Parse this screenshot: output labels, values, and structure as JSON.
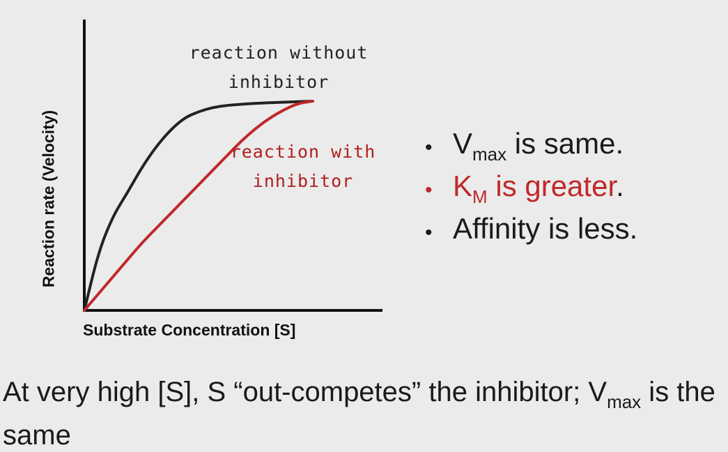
{
  "chart_data": {
    "type": "line",
    "xlabel": "Substrate Concentration [S]",
    "ylabel": "Reaction rate (Velocity)",
    "series": [
      {
        "name": "reaction without inhibitor",
        "color": "#222222",
        "x": [
          0,
          0.05,
          0.1,
          0.15,
          0.2,
          0.25,
          0.3,
          0.35,
          0.4,
          0.45,
          0.5,
          0.55,
          0.6,
          0.7,
          0.8
        ],
        "y": [
          0,
          0.28,
          0.45,
          0.56,
          0.68,
          0.78,
          0.86,
          0.92,
          0.95,
          0.97,
          0.98,
          0.985,
          0.99,
          0.995,
          1.0
        ]
      },
      {
        "name": "reaction with inhibitor",
        "color": "#c0282a",
        "x": [
          0,
          0.05,
          0.1,
          0.15,
          0.2,
          0.25,
          0.3,
          0.35,
          0.4,
          0.45,
          0.5,
          0.55,
          0.6,
          0.65,
          0.7,
          0.75,
          0.8
        ],
        "y": [
          0,
          0.08,
          0.16,
          0.24,
          0.32,
          0.39,
          0.46,
          0.53,
          0.6,
          0.67,
          0.74,
          0.81,
          0.87,
          0.92,
          0.96,
          0.99,
          1.0
        ]
      }
    ],
    "xlim": [
      0,
      1
    ],
    "ylim": [
      0,
      1.3
    ],
    "grid": false
  },
  "labels": {
    "without_line1": "reaction without",
    "without_line2": "inhibitor",
    "with_line1": "reaction with",
    "with_line2": "inhibitor"
  },
  "bullets": {
    "vmax_main": "V",
    "vmax_sub": "max",
    "vmax_rest": " is same.",
    "km_main": "K",
    "km_sub": "M",
    "km_rest": " is greater",
    "km_period": ".",
    "affinity": "Affinity is less."
  },
  "caption": {
    "part1": "At very high [S], S “out-competes” the inhibitor; V",
    "sub": "max",
    "part2": " is the same"
  },
  "colors": {
    "background": "#ebebeb",
    "accent_red": "#c0282a"
  }
}
